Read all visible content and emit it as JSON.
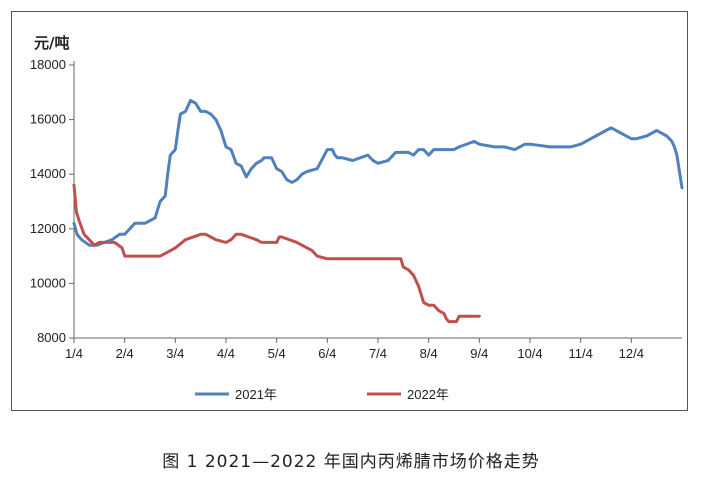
{
  "caption": "图 1  2021—2022 年国内丙烯腈市场价格走势",
  "chart_data": {
    "type": "line",
    "xlabel": "",
    "ylabel": "元/吨",
    "ylim": [
      8000,
      18000
    ],
    "yticks": [
      8000,
      10000,
      12000,
      14000,
      16000,
      18000
    ],
    "ytick_labels": [
      "8000",
      "10000",
      "12000",
      "14000",
      "16000",
      "18000"
    ],
    "xlim": [
      0,
      12
    ],
    "xticks": [
      0,
      1,
      2,
      3,
      4,
      5,
      6,
      7,
      8,
      9,
      10,
      11
    ],
    "xtick_labels": [
      "1/4",
      "2/4",
      "3/4",
      "4/4",
      "5/4",
      "6/4",
      "7/4",
      "8/4",
      "9/4",
      "10/4",
      "11/4",
      "12/4"
    ],
    "grid": "none",
    "legend": "bottom",
    "series": [
      {
        "name": "2021年",
        "color": "#4f81bd",
        "x": [
          0,
          0.06,
          0.15,
          0.3,
          0.45,
          0.6,
          0.75,
          0.9,
          1.0,
          1.2,
          1.4,
          1.5,
          1.6,
          1.7,
          1.8,
          1.85,
          1.9,
          2.0,
          2.05,
          2.1,
          2.2,
          2.3,
          2.4,
          2.5,
          2.6,
          2.7,
          2.8,
          2.9,
          3.0,
          3.1,
          3.2,
          3.3,
          3.4,
          3.5,
          3.6,
          3.7,
          3.75,
          3.8,
          3.9,
          4.0,
          4.1,
          4.2,
          4.3,
          4.4,
          4.5,
          4.6,
          4.8,
          5.0,
          5.1,
          5.15,
          5.2,
          5.3,
          5.5,
          5.8,
          5.9,
          6.0,
          6.2,
          6.35,
          6.4,
          6.5,
          6.6,
          6.7,
          6.8,
          6.9,
          7.0,
          7.1,
          7.2,
          7.3,
          7.5,
          7.6,
          7.9,
          8.0,
          8.3,
          8.5,
          8.7,
          8.9,
          9.0,
          9.4,
          9.5,
          9.8,
          10.0,
          10.5,
          10.6,
          11.0,
          11.1,
          11.3,
          11.5,
          11.7,
          11.8,
          11.85,
          11.9,
          12.0
        ],
        "y": [
          12200,
          11800,
          11600,
          11400,
          11400,
          11500,
          11600,
          11800,
          11800,
          12200,
          12200,
          12300,
          12400,
          13000,
          13200,
          14000,
          14700,
          14900,
          15600,
          16200,
          16300,
          16700,
          16600,
          16300,
          16300,
          16200,
          16000,
          15600,
          15000,
          14900,
          14400,
          14300,
          13900,
          14200,
          14400,
          14500,
          14600,
          14600,
          14600,
          14200,
          14100,
          13800,
          13700,
          13800,
          14000,
          14100,
          14200,
          14900,
          14900,
          14700,
          14600,
          14600,
          14500,
          14700,
          14500,
          14400,
          14500,
          14800,
          14800,
          14800,
          14800,
          14700,
          14900,
          14900,
          14700,
          14900,
          14900,
          14900,
          14900,
          15000,
          15200,
          15100,
          15000,
          15000,
          14900,
          15100,
          15100,
          15000,
          15000,
          15000,
          15100,
          15600,
          15700,
          15300,
          15300,
          15400,
          15600,
          15400,
          15200,
          15000,
          14700,
          13500
        ]
      },
      {
        "name": "2022年",
        "color": "#c0504d",
        "x": [
          0,
          0.05,
          0.1,
          0.2,
          0.3,
          0.4,
          0.5,
          0.55,
          0.6,
          0.8,
          0.95,
          1.0,
          1.5,
          1.7,
          1.8,
          2.0,
          2.2,
          2.5,
          2.6,
          2.7,
          2.8,
          3.0,
          3.1,
          3.2,
          3.3,
          3.45,
          3.6,
          3.7,
          3.8,
          3.9,
          4.0,
          4.05,
          4.1,
          4.4,
          4.5,
          4.6,
          4.7,
          4.8,
          5.0,
          5.1,
          5.3,
          5.4,
          5.5,
          5.6,
          5.8,
          6.0,
          6.2,
          6.45,
          6.5,
          6.6,
          6.7,
          6.8,
          6.9,
          7.0,
          7.1,
          7.2,
          7.3,
          7.35,
          7.4,
          7.5,
          7.55,
          7.6,
          7.65,
          7.7,
          7.8,
          7.85,
          7.9,
          8.0
        ],
        "y": [
          13600,
          12600,
          12300,
          11800,
          11600,
          11400,
          11500,
          11500,
          11500,
          11500,
          11300,
          11000,
          11000,
          11000,
          11100,
          11300,
          11600,
          11800,
          11800,
          11700,
          11600,
          11500,
          11600,
          11800,
          11800,
          11700,
          11600,
          11500,
          11500,
          11500,
          11500,
          11700,
          11700,
          11500,
          11400,
          11300,
          11200,
          11000,
          10900,
          10900,
          10900,
          10900,
          10900,
          10900,
          10900,
          10900,
          10900,
          10900,
          10600,
          10500,
          10300,
          9900,
          9300,
          9200,
          9200,
          9000,
          8900,
          8700,
          8600,
          8600,
          8600,
          8800,
          8800,
          8800,
          8800,
          8800,
          8800,
          8800
        ]
      }
    ]
  }
}
